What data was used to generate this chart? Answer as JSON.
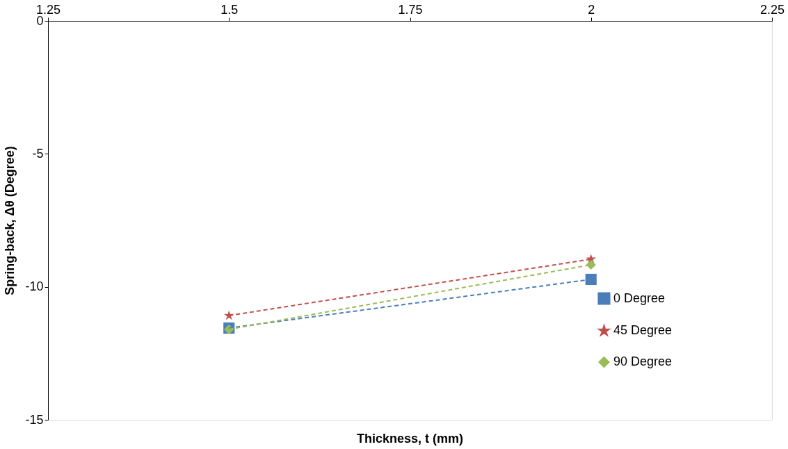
{
  "chart_data": {
    "type": "line",
    "xlabel": "Thickness, t (mm)",
    "ylabel": "Spring-back, Δθ (Degree)",
    "x": [
      1.5,
      2
    ],
    "series": [
      {
        "name": "0 Degree",
        "color": "#4a7ebb",
        "values": [
          -11.55,
          -9.72
        ],
        "marker": "square"
      },
      {
        "name": "45 Degree",
        "color": "#c0504d",
        "values": [
          -11.08,
          -8.96
        ],
        "marker": "star"
      },
      {
        "name": "90 Degree",
        "color": "#9bbb59",
        "values": [
          -11.6,
          -9.17
        ],
        "marker": "diamond"
      }
    ],
    "xlim": [
      1.25,
      2.25
    ],
    "xticks": [
      1.25,
      1.5,
      1.75,
      2,
      2.25
    ],
    "ylim": [
      -15,
      0
    ],
    "yticks": [
      -15,
      -10,
      -5,
      0
    ],
    "grid": false,
    "legend": "right",
    "line_style": "dashed"
  }
}
